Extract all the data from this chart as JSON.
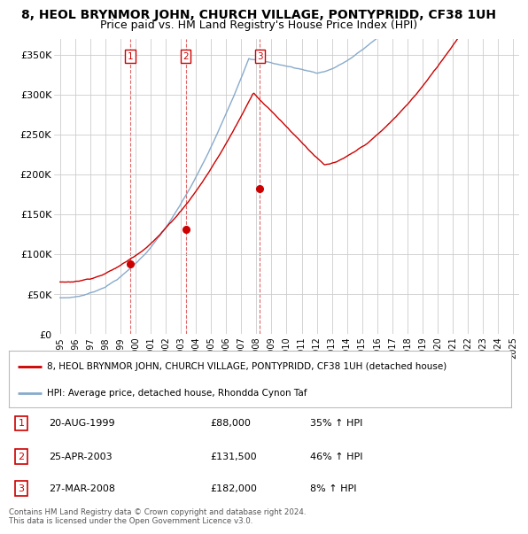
{
  "title": "8, HEOL BRYNMOR JOHN, CHURCH VILLAGE, PONTYPRIDD, CF38 1UH",
  "subtitle": "Price paid vs. HM Land Registry's House Price Index (HPI)",
  "ylim": [
    0,
    370000
  ],
  "yticks": [
    0,
    50000,
    100000,
    150000,
    200000,
    250000,
    300000,
    350000
  ],
  "ytick_labels": [
    "£0",
    "£50K",
    "£100K",
    "£150K",
    "£200K",
    "£250K",
    "£300K",
    "£350K"
  ],
  "sale_dates": [
    1999.64,
    2003.32,
    2008.23
  ],
  "sale_prices": [
    88000,
    131500,
    182000
  ],
  "sale_labels": [
    "1",
    "2",
    "3"
  ],
  "red_line_color": "#cc0000",
  "blue_line_color": "#88aacc",
  "grid_color": "#cccccc",
  "background_color": "#ffffff",
  "legend_entries": [
    "8, HEOL BRYNMOR JOHN, CHURCH VILLAGE, PONTYPRIDD, CF38 1UH (detached house)",
    "HPI: Average price, detached house, Rhondda Cynon Taf"
  ],
  "table_entries": [
    {
      "label": "1",
      "date": "20-AUG-1999",
      "price": "£88,000",
      "change": "35% ↑ HPI"
    },
    {
      "label": "2",
      "date": "25-APR-2003",
      "price": "£131,500",
      "change": "46% ↑ HPI"
    },
    {
      "label": "3",
      "date": "27-MAR-2008",
      "price": "£182,000",
      "change": "8% ↑ HPI"
    }
  ],
  "footer": "Contains HM Land Registry data © Crown copyright and database right 2024.\nThis data is licensed under the Open Government Licence v3.0.",
  "title_fontsize": 10,
  "subtitle_fontsize": 9
}
